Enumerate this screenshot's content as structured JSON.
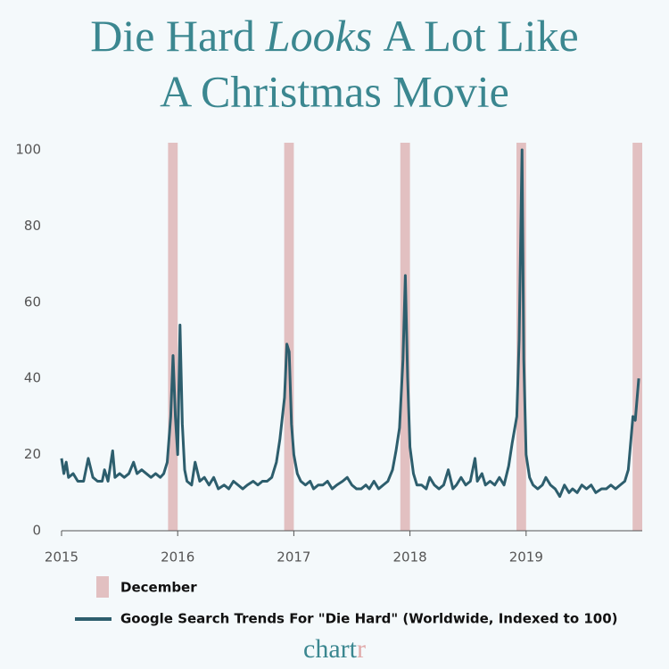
{
  "chart_data": {
    "type": "line",
    "title": [
      "Die Hard",
      "Looks",
      "A Lot Like",
      "A Christmas Movie"
    ],
    "xlim": [
      2015,
      2020
    ],
    "xticks": [
      2015,
      2016,
      2017,
      2018,
      2019
    ],
    "ylim": [
      0,
      100
    ],
    "yticks": [
      0,
      20,
      40,
      60,
      80,
      100
    ],
    "highlight": {
      "name": "December",
      "color": "#e2c0c1",
      "ranges": [
        [
          2015.917,
          2016
        ],
        [
          2016.917,
          2017
        ],
        [
          2017.917,
          2018
        ],
        [
          2018.917,
          2019
        ],
        [
          2019.917,
          2020
        ]
      ]
    },
    "series": [
      {
        "name": "Google Search Trends For \"Die Hard\" (Worldwide, Indexed to 100)",
        "color": "#2d5e6d",
        "x": [
          2015.0,
          2015.02,
          2015.04,
          2015.06,
          2015.1,
          2015.14,
          2015.19,
          2015.23,
          2015.27,
          2015.31,
          2015.35,
          2015.37,
          2015.4,
          2015.44,
          2015.46,
          2015.5,
          2015.54,
          2015.58,
          2015.62,
          2015.65,
          2015.69,
          2015.73,
          2015.77,
          2015.81,
          2015.85,
          2015.88,
          2015.91,
          2015.94,
          2015.96,
          2015.98,
          2016.0,
          2016.02,
          2016.04,
          2016.06,
          2016.08,
          2016.12,
          2016.15,
          2016.19,
          2016.23,
          2016.27,
          2016.31,
          2016.35,
          2016.4,
          2016.44,
          2016.48,
          2016.52,
          2016.56,
          2016.6,
          2016.65,
          2016.69,
          2016.73,
          2016.77,
          2016.81,
          2016.85,
          2016.88,
          2016.92,
          2016.94,
          2016.96,
          2016.98,
          2017.0,
          2017.03,
          2017.06,
          2017.1,
          2017.14,
          2017.17,
          2017.21,
          2017.25,
          2017.29,
          2017.33,
          2017.37,
          2017.42,
          2017.46,
          2017.5,
          2017.54,
          2017.58,
          2017.62,
          2017.65,
          2017.69,
          2017.73,
          2017.77,
          2017.81,
          2017.85,
          2017.88,
          2017.91,
          2017.94,
          2017.96,
          2017.98,
          2018.0,
          2018.03,
          2018.06,
          2018.1,
          2018.14,
          2018.17,
          2018.21,
          2018.25,
          2018.29,
          2018.33,
          2018.37,
          2018.4,
          2018.44,
          2018.48,
          2018.52,
          2018.56,
          2018.58,
          2018.62,
          2018.65,
          2018.69,
          2018.73,
          2018.77,
          2018.81,
          2018.85,
          2018.88,
          2018.92,
          2018.94,
          2018.965,
          2018.98,
          2019.0,
          2019.03,
          2019.06,
          2019.1,
          2019.14,
          2019.17,
          2019.21,
          2019.25,
          2019.29,
          2019.33,
          2019.37,
          2019.4,
          2019.44,
          2019.48,
          2019.52,
          2019.56,
          2019.6,
          2019.65,
          2019.69,
          2019.73,
          2019.77,
          2019.81,
          2019.85,
          2019.88,
          2019.92,
          2019.94,
          2019.97
        ],
        "values": [
          19,
          15,
          18,
          14,
          15,
          13,
          13,
          19,
          14,
          13,
          13,
          16,
          13,
          21,
          14,
          15,
          14,
          15,
          18,
          15,
          16,
          15,
          14,
          15,
          14,
          15,
          18,
          30,
          46,
          30,
          20,
          54,
          28,
          16,
          13,
          12,
          18,
          13,
          14,
          12,
          14,
          11,
          12,
          11,
          13,
          12,
          11,
          12,
          13,
          12,
          13,
          13,
          14,
          18,
          24,
          35,
          49,
          47,
          28,
          20,
          15,
          13,
          12,
          13,
          11,
          12,
          12,
          13,
          11,
          12,
          13,
          14,
          12,
          11,
          11,
          12,
          11,
          13,
          11,
          12,
          13,
          16,
          21,
          27,
          45,
          67,
          40,
          22,
          15,
          12,
          12,
          11,
          14,
          12,
          11,
          12,
          16,
          11,
          12,
          14,
          12,
          13,
          19,
          13,
          15,
          12,
          13,
          12,
          14,
          12,
          17,
          23,
          30,
          50,
          100,
          45,
          20,
          14,
          12,
          11,
          12,
          14,
          12,
          11,
          9,
          12,
          10,
          11,
          10,
          12,
          11,
          12,
          10,
          11,
          11,
          12,
          11,
          12,
          13,
          16,
          30,
          29,
          40
        ]
      }
    ],
    "logo": [
      "chart",
      "r"
    ]
  }
}
